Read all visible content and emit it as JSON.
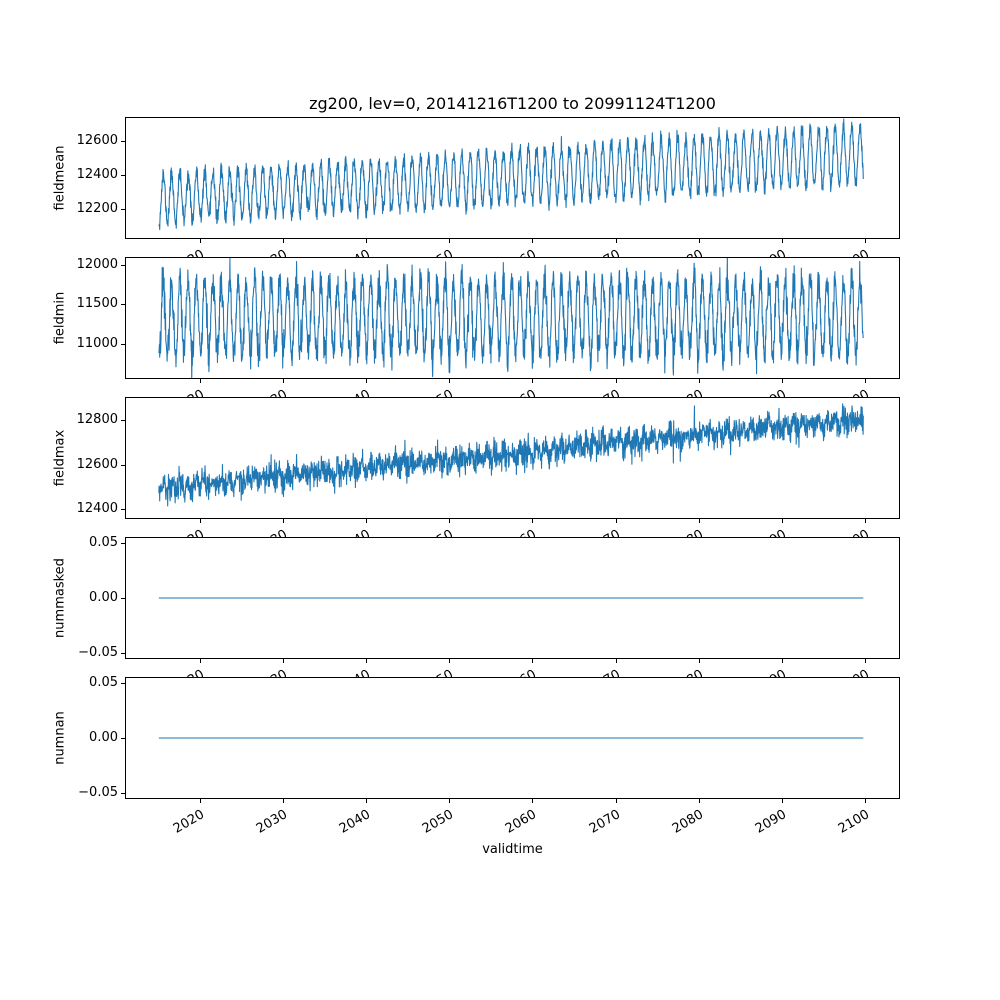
{
  "figure": {
    "title": "zg200, lev=0, 20141216T1200 to 20991124T1200",
    "xlabel": "validtime",
    "line_color": "#1f77b4",
    "background": "#ffffff"
  },
  "chart_data": [
    {
      "type": "line",
      "name": "fieldmean",
      "ylabel": "fieldmean",
      "legend": "none",
      "grid": false,
      "x_range": [
        2014.96,
        2099.9
      ],
      "xlim": [
        2011,
        2104.2
      ],
      "xticks": [
        2020,
        2030,
        2040,
        2050,
        2060,
        2070,
        2080,
        2090,
        2100
      ],
      "xticklabels": [
        "2020",
        "2030",
        "2040",
        "2050",
        "2060",
        "2070",
        "2080",
        "2090",
        "2100"
      ],
      "ylim": [
        12020,
        12740
      ],
      "yticks": [
        12200,
        12400,
        12600
      ],
      "yticklabels": [
        "12200",
        "12400",
        "12600"
      ],
      "series_model": {
        "kind": "seasonal",
        "samples_per_year": 30,
        "base_start": 12255,
        "base_end": 12520,
        "amp_start": 140,
        "amp_end": 170,
        "noise_sd": 25,
        "seed": 11
      },
      "summary": "Annual oscillation between about 12100 and 12700 m with a slow upward trend from ~12250 to ~12520"
    },
    {
      "type": "line",
      "name": "fieldmin",
      "ylabel": "fieldmin",
      "legend": "none",
      "grid": false,
      "x_range": [
        2014.96,
        2099.9
      ],
      "xlim": [
        2011,
        2104.2
      ],
      "xticks": [
        2020,
        2030,
        2040,
        2050,
        2060,
        2070,
        2080,
        2090,
        2100
      ],
      "xticklabels": [
        "2020",
        "2030",
        "2040",
        "2050",
        "2060",
        "2070",
        "2080",
        "2090",
        "2100"
      ],
      "ylim": [
        10550,
        12100
      ],
      "yticks": [
        11000,
        11500,
        12000
      ],
      "yticklabels": [
        "11000",
        "11500",
        "12000"
      ],
      "series_model": {
        "kind": "seasonal",
        "samples_per_year": 30,
        "base_start": 11330,
        "base_end": 11340,
        "amp_start": 480,
        "amp_end": 480,
        "noise_sd": 110,
        "seed": 22
      },
      "summary": "Strong high-frequency oscillation between about 10600 and 12050 m with no visible trend, centred near 11300"
    },
    {
      "type": "line",
      "name": "fieldmax",
      "ylabel": "fieldmax",
      "legend": "none",
      "grid": false,
      "x_range": [
        2014.96,
        2099.9
      ],
      "xlim": [
        2011,
        2104.2
      ],
      "xticks": [
        2020,
        2030,
        2040,
        2050,
        2060,
        2070,
        2080,
        2090,
        2100
      ],
      "xticklabels": [
        "2020",
        "2030",
        "2040",
        "2050",
        "2060",
        "2070",
        "2080",
        "2090",
        "2100"
      ],
      "ylim": [
        12355,
        12905
      ],
      "yticks": [
        12400,
        12600,
        12800
      ],
      "yticklabels": [
        "12400",
        "12600",
        "12800"
      ],
      "series_model": {
        "kind": "seasonal",
        "samples_per_year": 30,
        "base_start": 12490,
        "base_end": 12810,
        "amp_start": 18,
        "amp_end": 22,
        "noise_sd": 30,
        "seed": 33
      },
      "summary": "Noisy series rising steadily from about 12500 in 2015 to about 12820 by 2100"
    },
    {
      "type": "line",
      "name": "nummasked",
      "ylabel": "nummasked",
      "legend": "none",
      "grid": false,
      "x_range": [
        2014.96,
        2099.9
      ],
      "xlim": [
        2011,
        2104.2
      ],
      "xticks": [
        2020,
        2030,
        2040,
        2050,
        2060,
        2070,
        2080,
        2090,
        2100
      ],
      "xticklabels": [
        "2020",
        "2030",
        "2040",
        "2050",
        "2060",
        "2070",
        "2080",
        "2090",
        "2100"
      ],
      "ylim": [
        -0.055,
        0.055
      ],
      "yticks": [
        -0.05,
        0,
        0.05
      ],
      "yticklabels": [
        "−0.05",
        "0.00",
        "0.05"
      ],
      "series_model": {
        "kind": "constant",
        "value": 0
      },
      "summary": "Constant zero line for the whole period"
    },
    {
      "type": "line",
      "name": "numnan",
      "ylabel": "numnan",
      "legend": "none",
      "grid": false,
      "x_range": [
        2014.96,
        2099.9
      ],
      "xlim": [
        2011,
        2104.2
      ],
      "xticks": [
        2020,
        2030,
        2040,
        2050,
        2060,
        2070,
        2080,
        2090,
        2100
      ],
      "xticklabels": [
        "2020",
        "2030",
        "2040",
        "2050",
        "2060",
        "2070",
        "2080",
        "2090",
        "2100"
      ],
      "ylim": [
        -0.055,
        0.055
      ],
      "yticks": [
        -0.05,
        0,
        0.05
      ],
      "yticklabels": [
        "−0.05",
        "0.00",
        "0.05"
      ],
      "series_model": {
        "kind": "constant",
        "value": 0
      },
      "summary": "Constant zero line for the whole period"
    }
  ]
}
